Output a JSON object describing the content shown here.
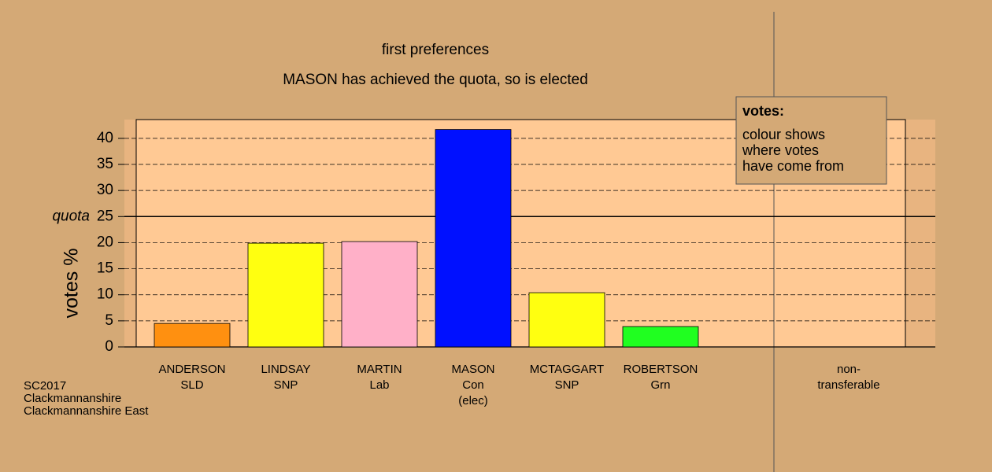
{
  "chart_data": {
    "type": "bar",
    "title": "first preferences",
    "subtitle": "MASON has achieved the quota, so is elected",
    "ylabel": "votes %",
    "categories": [
      [
        "ANDERSON",
        "SLD"
      ],
      [
        "LINDSAY",
        "SNP"
      ],
      [
        "MARTIN",
        "Lab"
      ],
      [
        "MASON",
        "Con",
        "(elec)"
      ],
      [
        "MCTAGGART",
        "SNP"
      ],
      [
        "ROBERTSON",
        "Grn"
      ]
    ],
    "values": [
      4.5,
      19.9,
      20.2,
      41.7,
      10.4,
      3.9
    ],
    "colors": [
      "#ff9010",
      "#ffff10",
      "#ffb0c8",
      "#0010ff",
      "#ffff10",
      "#20ff20"
    ],
    "extra_category": [
      "non-",
      "transferable"
    ],
    "ylim": [
      0,
      43.6
    ],
    "yticks": [
      0,
      5,
      10,
      15,
      20,
      25,
      30,
      35,
      40
    ],
    "grid": true,
    "quota": {
      "label": "quota",
      "value": 25
    },
    "legend": {
      "title": "votes:",
      "lines": [
        "colour shows",
        "where votes",
        "have come from"
      ]
    },
    "footnote": [
      "SC2017",
      "Clackmannanshire",
      "Clackmannanshire East"
    ]
  }
}
